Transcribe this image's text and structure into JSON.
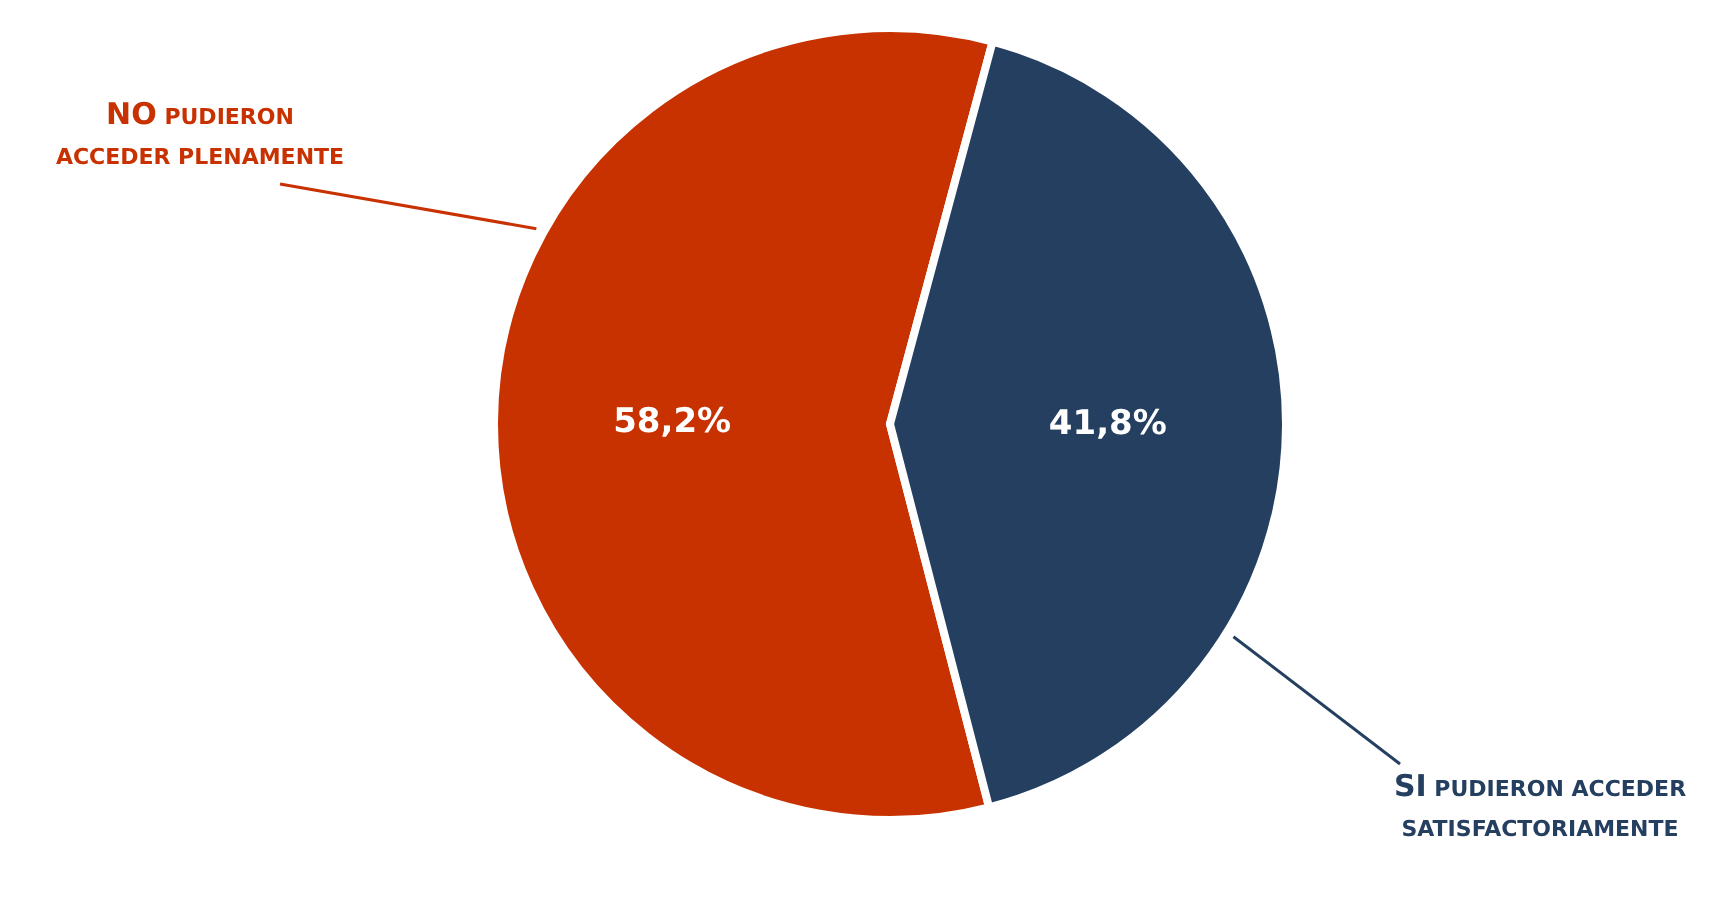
{
  "chart_data": {
    "type": "pie",
    "categories": [
      "NO PUDIERON ACCEDER PLENAMENTE",
      "SI PUDIERON ACCEDER SATISFACTORIAMENTE"
    ],
    "values": [
      58.2,
      41.8
    ],
    "colors": [
      "#c83200",
      "#243f60"
    ],
    "value_labels": [
      "58,2%",
      "41,8%"
    ],
    "legend": false
  }
}
